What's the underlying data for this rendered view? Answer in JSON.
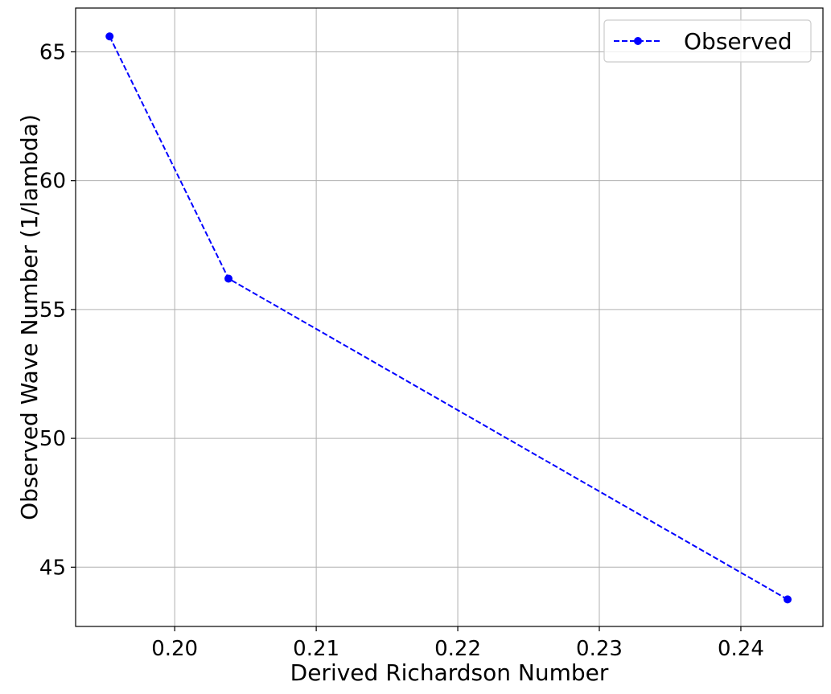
{
  "chart_data": {
    "type": "line",
    "xlabel": "Derived Richardson Number",
    "ylabel": "Observed Wave Number (1/lambda)",
    "xlim": [
      0.193,
      0.2458
    ],
    "ylim": [
      42.7,
      66.7
    ],
    "x_ticks": [
      {
        "value": 0.2,
        "label": "0.20"
      },
      {
        "value": 0.21,
        "label": "0.21"
      },
      {
        "value": 0.22,
        "label": "0.22"
      },
      {
        "value": 0.23,
        "label": "0.23"
      },
      {
        "value": 0.24,
        "label": "0.24"
      }
    ],
    "y_ticks": [
      {
        "value": 45,
        "label": "45"
      },
      {
        "value": 50,
        "label": "50"
      },
      {
        "value": 55,
        "label": "55"
      },
      {
        "value": 60,
        "label": "60"
      },
      {
        "value": 65,
        "label": "65"
      }
    ],
    "grid": true,
    "legend_position": "top-right",
    "series": [
      {
        "name": "Observed",
        "color": "#0000ff",
        "line_style": "dashed",
        "marker": "circle",
        "x": [
          0.1954,
          0.2038,
          0.2433
        ],
        "y": [
          65.6,
          56.2,
          43.75
        ]
      }
    ]
  }
}
